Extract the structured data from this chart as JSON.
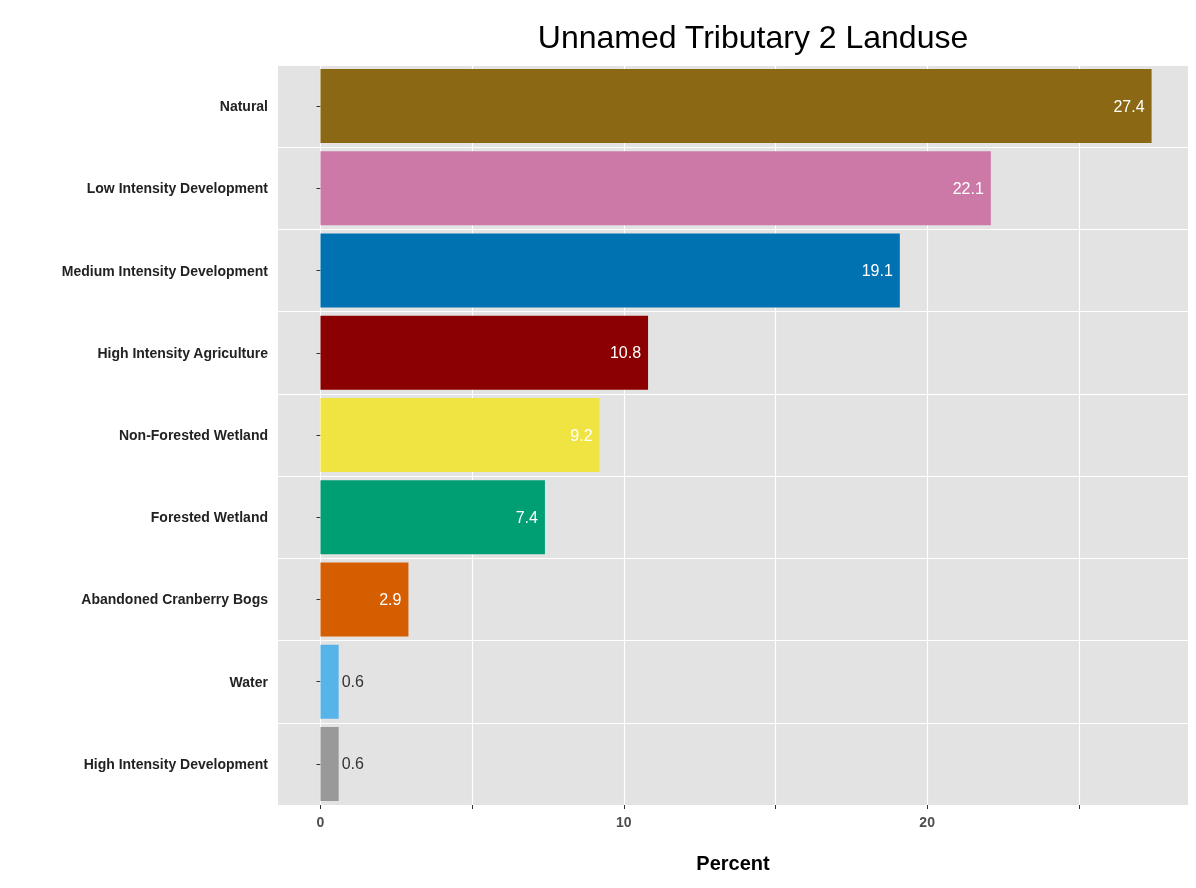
{
  "chart_data": {
    "type": "bar",
    "orientation": "horizontal",
    "title": "Unnamed Tributary 2 Landuse",
    "xlabel": "Percent",
    "categories": [
      "Natural",
      "Low Intensity Development",
      "Medium Intensity Development",
      "High Intensity Agriculture",
      "Non-Forested Wetland",
      "Forested Wetland",
      "Abandoned Cranberry Bogs",
      "Water",
      "High Intensity Development"
    ],
    "values": [
      27.4,
      22.1,
      19.1,
      10.8,
      9.2,
      7.4,
      2.9,
      0.6,
      0.6
    ],
    "colors": [
      "#8b6914",
      "#cc79a7",
      "#0072b2",
      "#8b0000",
      "#f0e442",
      "#009e73",
      "#d55e00",
      "#56b4e9",
      "#999999"
    ],
    "xlim": [
      -1.4,
      28.6
    ],
    "xticks": [
      0,
      {
        "value": 5,
        "label": null
      },
      10,
      {
        "value": 15,
        "label": null
      },
      20,
      {
        "value": 25,
        "label": null
      }
    ],
    "data_labels": true,
    "grid": true
  }
}
